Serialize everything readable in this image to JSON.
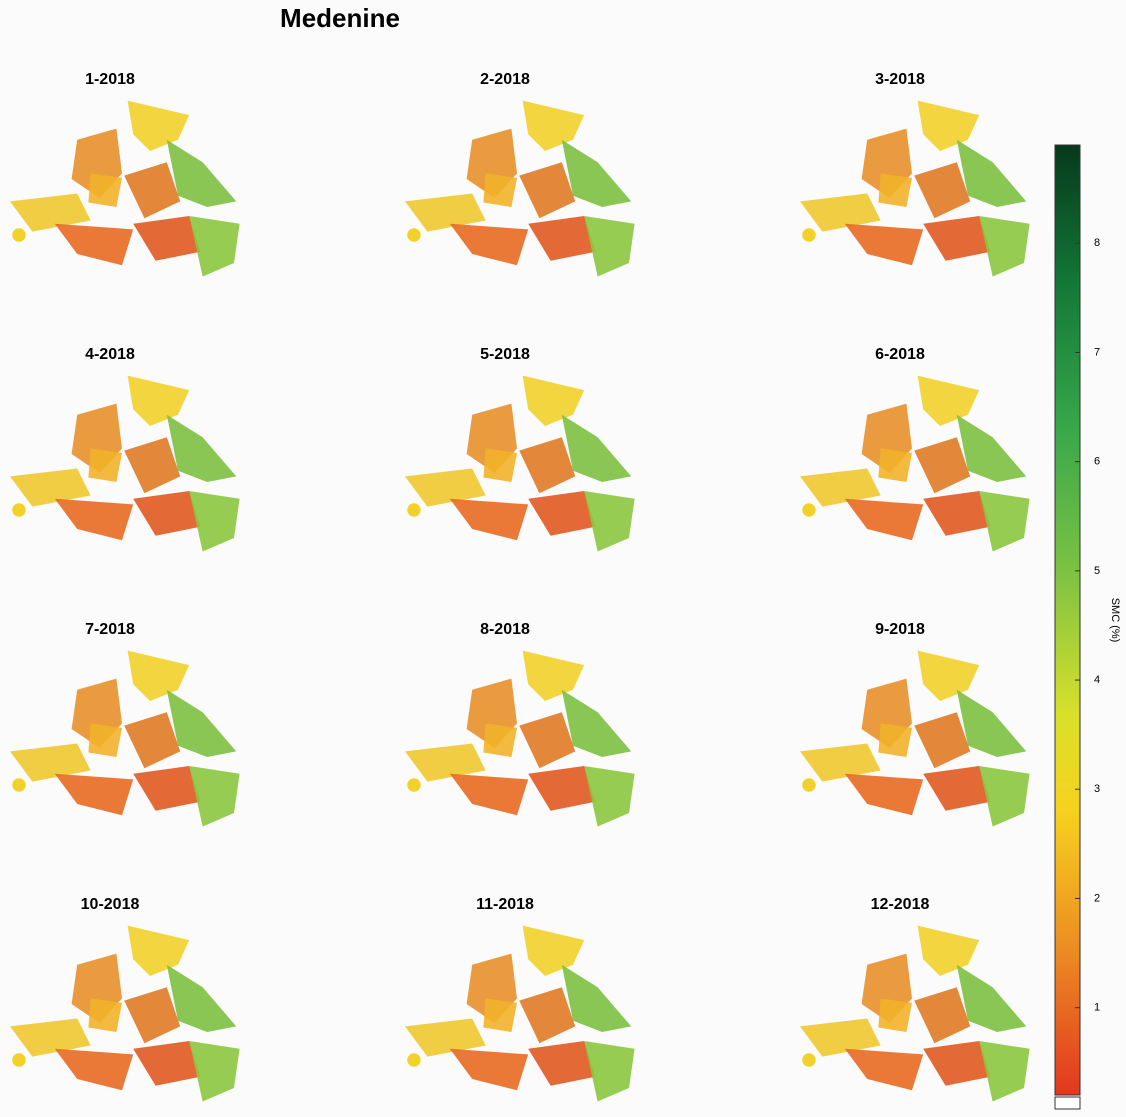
{
  "title": "Medenine",
  "panels": [
    "1-2018",
    "2-2018",
    "3-2018",
    "4-2018",
    "5-2018",
    "6-2018",
    "7-2018",
    "8-2018",
    "9-2018",
    "10-2018",
    "11-2018",
    "12-2018"
  ],
  "colorbar": {
    "label": "SMC (%)",
    "lim": [
      0.2,
      8.9
    ],
    "ticks": [
      1,
      2,
      3,
      4,
      5,
      6,
      7,
      8
    ]
  }
}
